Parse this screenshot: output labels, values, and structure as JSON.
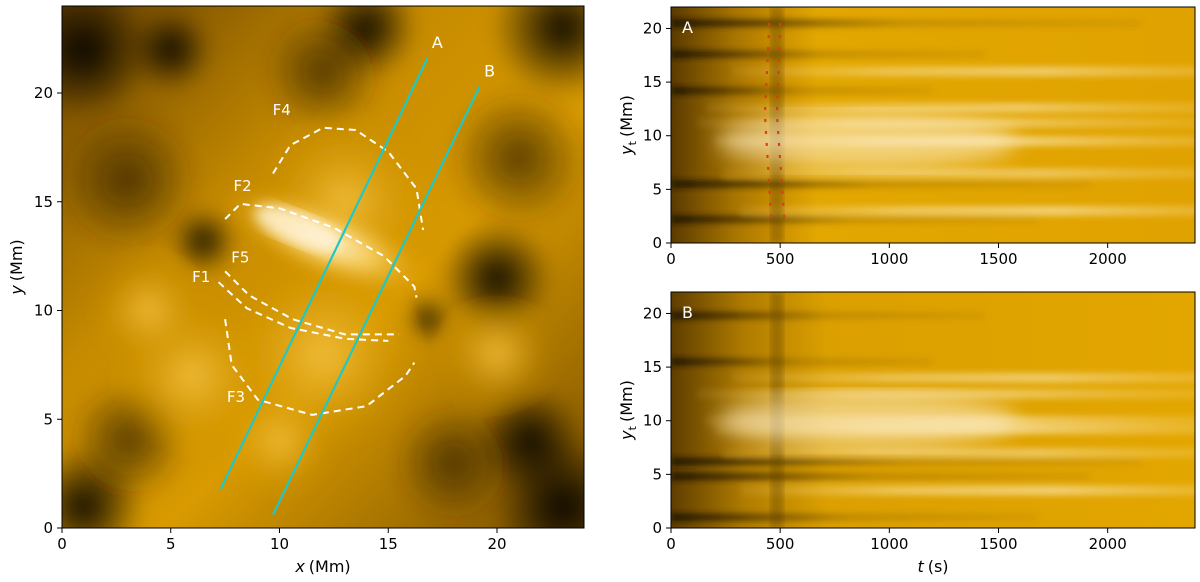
{
  "colors": {
    "background": "#ffffff",
    "axis": "#000000",
    "slit": "#1ec8c8",
    "flux_outline": "#ffffff",
    "marker": "#e03a1e",
    "img_dark": "#000000",
    "img_mid": "#8a5a00",
    "img_base": "#e0a000",
    "img_bright": "#f2c040",
    "img_highlight": "#fff3d8"
  },
  "chart_data": [
    {
      "type": "heatmap",
      "panel": "left",
      "description": "synthetic emission image",
      "xlabel_var": "x",
      "xlabel_unit": "(Mm)",
      "ylabel_var": "y",
      "ylabel_unit": "(Mm)",
      "xlim": [
        0,
        24
      ],
      "ylim": [
        0,
        24
      ],
      "xticks": [
        0,
        5,
        10,
        15,
        20
      ],
      "yticks": [
        0,
        5,
        10,
        15,
        20
      ],
      "slits": [
        {
          "name": "A",
          "start": [
            7.3,
            1.8
          ],
          "end": [
            16.8,
            21.6
          ]
        },
        {
          "name": "B",
          "start": [
            9.7,
            0.6
          ],
          "end": [
            19.2,
            20.3
          ]
        }
      ],
      "flux_ropes": [
        {
          "name": "F1",
          "label_at": [
            6.4,
            11.3
          ],
          "path": [
            [
              7.2,
              11.3
            ],
            [
              8.5,
              10.1
            ],
            [
              10.5,
              9.2
            ],
            [
              13.0,
              8.7
            ],
            [
              15.0,
              8.6
            ]
          ]
        },
        {
          "name": "F2",
          "label_at": [
            8.3,
            15.5
          ],
          "path": [
            [
              7.5,
              14.2
            ],
            [
              8.2,
              14.9
            ],
            [
              10.0,
              14.7
            ],
            [
              12.5,
              13.8
            ],
            [
              14.8,
              12.5
            ],
            [
              16.2,
              11.1
            ],
            [
              16.3,
              10.6
            ]
          ]
        },
        {
          "name": "F3",
          "label_at": [
            8.0,
            5.8
          ],
          "path": [
            [
              7.5,
              9.6
            ],
            [
              7.8,
              7.5
            ],
            [
              9.0,
              5.9
            ],
            [
              11.5,
              5.2
            ],
            [
              14.0,
              5.6
            ],
            [
              15.8,
              7.0
            ],
            [
              16.2,
              7.6
            ]
          ]
        },
        {
          "name": "F4",
          "label_at": [
            10.1,
            19.0
          ],
          "path": [
            [
              9.7,
              16.3
            ],
            [
              10.5,
              17.6
            ],
            [
              12.0,
              18.4
            ],
            [
              13.5,
              18.3
            ],
            [
              15.0,
              17.3
            ],
            [
              16.3,
              15.6
            ],
            [
              16.6,
              13.7
            ]
          ]
        },
        {
          "name": "F5",
          "label_at": [
            8.2,
            12.2
          ],
          "path": [
            [
              7.5,
              11.8
            ],
            [
              8.6,
              10.7
            ],
            [
              10.6,
              9.6
            ],
            [
              13.0,
              8.9
            ],
            [
              15.2,
              8.9
            ],
            [
              15.5,
              8.9
            ]
          ]
        }
      ]
    },
    {
      "type": "heatmap",
      "panel": "top-right",
      "description": "time-distance plot along slit A",
      "label": "A",
      "xlabel_var": "",
      "xlabel_unit": "",
      "ylabel_var": "y",
      "ylabel_sub": "t",
      "ylabel_unit": "(Mm)",
      "xlim": [
        0,
        2400
      ],
      "ylim": [
        0,
        22
      ],
      "xticks": [
        0,
        500,
        1000,
        1500,
        2000
      ],
      "yticks": [
        0,
        5,
        10,
        15,
        20
      ],
      "markers": [
        {
          "style": "dotted",
          "x": [
            450,
            430,
            460
          ],
          "y": [
            20.5,
            12.0,
            2.0
          ]
        },
        {
          "style": "dotted",
          "x": [
            500,
            485,
            520
          ],
          "y": [
            20.5,
            12.0,
            2.0
          ]
        }
      ]
    },
    {
      "type": "heatmap",
      "panel": "bottom-right",
      "description": "time-distance plot along slit B",
      "label": "B",
      "xlabel_var": "t",
      "xlabel_unit": "(s)",
      "ylabel_var": "y",
      "ylabel_sub": "t",
      "ylabel_unit": "(Mm)",
      "xlim": [
        0,
        2400
      ],
      "ylim": [
        0,
        22
      ],
      "xticks": [
        0,
        500,
        1000,
        1500,
        2000
      ],
      "yticks": [
        0,
        5,
        10,
        15,
        20
      ]
    }
  ]
}
